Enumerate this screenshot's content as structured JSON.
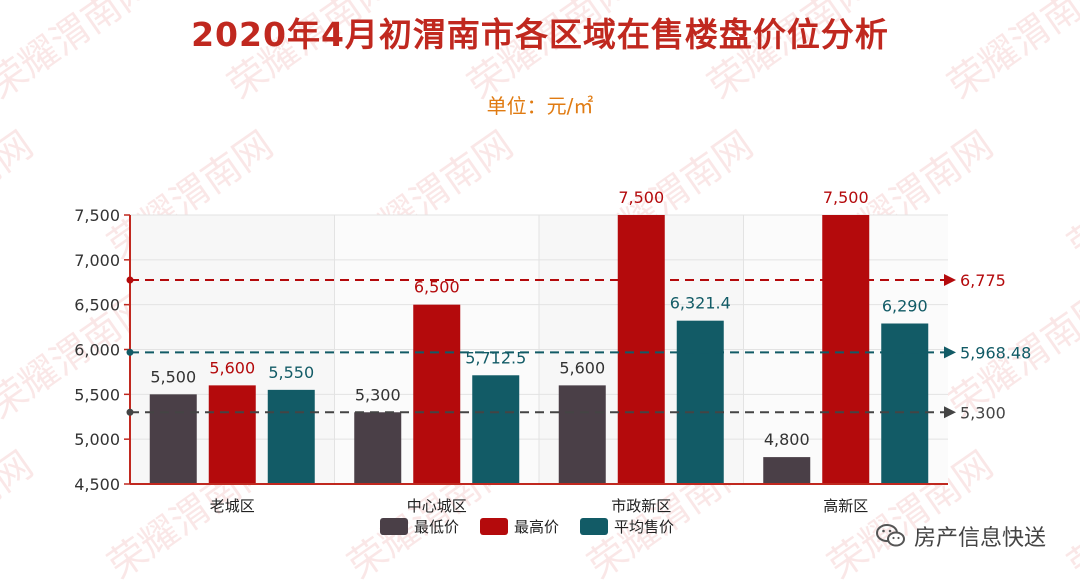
{
  "watermark": {
    "text": "荣耀渭南网"
  },
  "header": {
    "title": "2020年4月初渭南市各区域在售楼盘价位分析",
    "unit": "单位：元/㎡"
  },
  "footer": {
    "brand": "房产信息快送",
    "brand_icon": "wechat-icon"
  },
  "colors": {
    "min": "#4a3f47",
    "max": "#b40a0c",
    "avg": "#125b66",
    "title": "#c0281f",
    "unit": "#e07b12"
  },
  "chart_data": {
    "type": "bar",
    "title": "2020年4月初渭南市各区域在售楼盘价位分析",
    "subtitle": "单位：元/㎡",
    "categories": [
      "老城区",
      "中心城区",
      "市政新区",
      "高新区"
    ],
    "series": [
      {
        "name": "最低价",
        "values": [
          5500,
          5300,
          5600,
          4800
        ],
        "labels": [
          "5,500",
          "5,300",
          "5,600",
          "4,800"
        ]
      },
      {
        "name": "最高价",
        "values": [
          5600,
          6500,
          7500,
          7500
        ],
        "labels": [
          "5,600",
          "6,500",
          "7,500",
          "7,500"
        ]
      },
      {
        "name": "平均售价",
        "values": [
          5550,
          5712.5,
          6321.4,
          6290
        ],
        "labels": [
          "5,550",
          "5,712.5",
          "6,321.4",
          "6,290"
        ]
      }
    ],
    "ylim": [
      4500,
      7500
    ],
    "yticks": [
      4500,
      5000,
      5500,
      6000,
      6500,
      7000,
      7500
    ],
    "ytick_labels": [
      "4,500",
      "5,000",
      "5,500",
      "6,000",
      "6,500",
      "7,000",
      "7,500"
    ],
    "reference_lines": [
      {
        "series": "最高价",
        "value": 6775,
        "label": "6,775"
      },
      {
        "series": "平均售价",
        "value": 5968.48,
        "label": "5,968.48"
      },
      {
        "series": "最低价",
        "value": 5300,
        "label": "5,300"
      }
    ],
    "grid": true,
    "legend": "bottom"
  }
}
